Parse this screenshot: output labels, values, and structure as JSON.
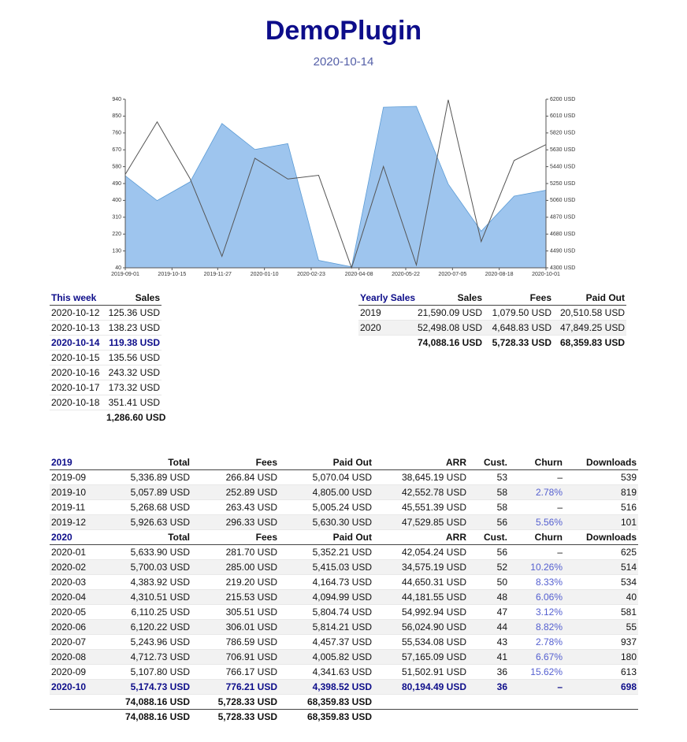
{
  "header": {
    "title": "DemoPlugin",
    "date": "2020-10-14"
  },
  "chart_data": {
    "type": "area",
    "x": [
      "2019-09-01",
      "2019-10-01",
      "2019-11-01",
      "2019-12-01",
      "2020-01-01",
      "2020-02-01",
      "2020-03-01",
      "2020-04-01",
      "2020-05-01",
      "2020-06-01",
      "2020-07-01",
      "2020-08-01",
      "2020-09-01",
      "2020-10-01"
    ],
    "series": [
      {
        "type": "area",
        "color": "#9ec5ee",
        "axis": "y2",
        "values": [
          5336.89,
          5057.89,
          5268.68,
          5926.63,
          5633.9,
          5700.03,
          4383.92,
          4310.51,
          6110.25,
          6120.22,
          5243.96,
          4712.73,
          5107.8,
          5174.73
        ]
      },
      {
        "type": "line",
        "color": "#555555",
        "values": [
          539,
          819,
          516,
          101,
          625,
          514,
          534,
          40,
          581,
          55,
          937,
          180,
          613,
          698
        ]
      }
    ],
    "xlim": [
      "2019-09-01",
      "2020-10-01"
    ],
    "xticks": [
      "2019-09-01",
      "2019-10-15",
      "2019-11-27",
      "2020-01-10",
      "2020-02-23",
      "2020-04-08",
      "2020-05-22",
      "2020-07-05",
      "2020-08-18",
      "2020-10-01"
    ],
    "ylim": [
      40,
      940
    ],
    "yticks": [
      40,
      130,
      220,
      310,
      400,
      490,
      580,
      670,
      760,
      850,
      940
    ],
    "y2lim": [
      4300,
      6200
    ],
    "y2ticks": [
      {
        "value": 4300,
        "label": "4300 USD"
      },
      {
        "value": 4490,
        "label": "4490 USD"
      },
      {
        "value": 4680,
        "label": "4680 USD"
      },
      {
        "value": 4870,
        "label": "4870 USD"
      },
      {
        "value": 5060,
        "label": "5060 USD"
      },
      {
        "value": 5250,
        "label": "5250 USD"
      },
      {
        "value": 5440,
        "label": "5440 USD"
      },
      {
        "value": 5630,
        "label": "5630 USD"
      },
      {
        "value": 5820,
        "label": "5820 USD"
      },
      {
        "value": 6010,
        "label": "6010 USD"
      },
      {
        "value": 6200,
        "label": "6200 USD"
      }
    ]
  },
  "week": {
    "header": [
      "This week",
      "Sales"
    ],
    "rows": [
      [
        "2020-10-12",
        "125.36 USD"
      ],
      [
        "2020-10-13",
        "138.23 USD"
      ],
      [
        "2020-10-14",
        "119.38 USD"
      ],
      [
        "2020-10-15",
        "135.56 USD"
      ],
      [
        "2020-10-16",
        "243.32 USD"
      ],
      [
        "2020-10-17",
        "173.32 USD"
      ],
      [
        "2020-10-18",
        "351.41 USD"
      ]
    ],
    "totals": [
      [
        "1,286.60 USD"
      ]
    ]
  },
  "yearly": {
    "header": [
      "Yearly Sales",
      "Sales",
      "Fees",
      "Paid Out"
    ],
    "rows": [
      [
        "2019",
        "21,590.09 USD",
        "1,079.50 USD",
        "20,510.58 USD"
      ],
      [
        "2020",
        "52,498.08 USD",
        "4,648.83 USD",
        "47,849.25 USD"
      ]
    ],
    "totals": [
      [
        "74,088.16 USD",
        "5,728.33 USD",
        "68,359.83 USD"
      ]
    ]
  },
  "monthly": {
    "sections": [
      {
        "header": [
          "2019",
          "Total",
          "Fees",
          "Paid Out",
          "ARR",
          "Cust.",
          "Churn",
          "Downloads"
        ],
        "rows": [
          [
            "2019-09",
            "5,336.89 USD",
            "266.84 USD",
            "5,070.04 USD",
            "38,645.19 USD",
            "53",
            "–",
            "539"
          ],
          [
            "2019-10",
            "5,057.89 USD",
            "252.89 USD",
            "4,805.00 USD",
            "42,552.78 USD",
            "58",
            "2.78%",
            "819"
          ],
          [
            "2019-11",
            "5,268.68 USD",
            "263.43 USD",
            "5,005.24 USD",
            "45,551.39 USD",
            "58",
            "–",
            "516"
          ],
          [
            "2019-12",
            "5,926.63 USD",
            "296.33 USD",
            "5,630.30 USD",
            "47,529.85 USD",
            "56",
            "5.56%",
            "101"
          ]
        ]
      },
      {
        "header": [
          "2020",
          "Total",
          "Fees",
          "Paid Out",
          "ARR",
          "Cust.",
          "Churn",
          "Downloads"
        ],
        "rows": [
          [
            "2020-01",
            "5,633.90 USD",
            "281.70 USD",
            "5,352.21 USD",
            "42,054.24 USD",
            "56",
            "–",
            "625"
          ],
          [
            "2020-02",
            "5,700.03 USD",
            "285.00 USD",
            "5,415.03 USD",
            "34,575.19 USD",
            "52",
            "10.26%",
            "514"
          ],
          [
            "2020-03",
            "4,383.92 USD",
            "219.20 USD",
            "4,164.73 USD",
            "44,650.31 USD",
            "50",
            "8.33%",
            "534"
          ],
          [
            "2020-04",
            "4,310.51 USD",
            "215.53 USD",
            "4,094.99 USD",
            "44,181.55 USD",
            "48",
            "6.06%",
            "40"
          ],
          [
            "2020-05",
            "6,110.25 USD",
            "305.51 USD",
            "5,804.74 USD",
            "54,992.94 USD",
            "47",
            "3.12%",
            "581"
          ],
          [
            "2020-06",
            "6,120.22 USD",
            "306.01 USD",
            "5,814.21 USD",
            "56,024.90 USD",
            "44",
            "8.82%",
            "55"
          ],
          [
            "2020-07",
            "5,243.96 USD",
            "786.59 USD",
            "4,457.37 USD",
            "55,534.08 USD",
            "43",
            "2.78%",
            "937"
          ],
          [
            "2020-08",
            "4,712.73 USD",
            "706.91 USD",
            "4,005.82 USD",
            "57,165.09 USD",
            "41",
            "6.67%",
            "180"
          ],
          [
            "2020-09",
            "5,107.80 USD",
            "766.17 USD",
            "4,341.63 USD",
            "51,502.91 USD",
            "36",
            "15.62%",
            "613"
          ],
          [
            "2020-10",
            "5,174.73 USD",
            "776.21 USD",
            "4,398.52 USD",
            "80,194.49 USD",
            "36",
            "–",
            "698"
          ]
        ]
      }
    ],
    "totals": [
      [
        "74,088.16 USD",
        "5,728.33 USD",
        "68,359.83 USD"
      ],
      [
        "74,088.16 USD",
        "5,728.33 USD",
        "68,359.83 USD"
      ]
    ]
  }
}
